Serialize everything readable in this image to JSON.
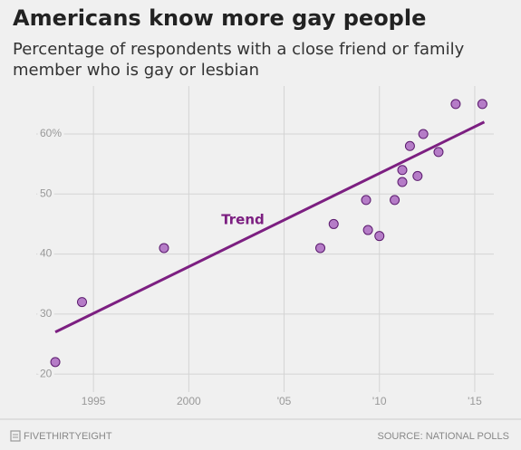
{
  "chart_data": {
    "type": "scatter",
    "title": "Americans know more gay people",
    "subtitle": [
      "Percentage of respondents with a close friend or family",
      "member who is gay or lesbian"
    ],
    "series": [
      {
        "color": "#b57cc7",
        "stroke": "#5b1a6e",
        "x": [
          1993.0,
          1994.4,
          1998.7,
          2006.9,
          2007.6,
          2009.3,
          2009.4,
          2010.0,
          2010.8,
          2011.2,
          2011.2,
          2011.6,
          2012.0,
          2012.3,
          2013.1,
          2014.0,
          2015.4
        ],
        "values": [
          22,
          32,
          41,
          41,
          45,
          49,
          44,
          43,
          49,
          52,
          54,
          58,
          53,
          60,
          57,
          65,
          65
        ]
      }
    ],
    "trend": {
      "name": "Trend",
      "color": "#7c1f81",
      "x": [
        1993.0,
        2015.5
      ],
      "values": [
        27,
        62
      ]
    },
    "xlim": [
      1992,
      2016
    ],
    "ylim": [
      17,
      68
    ],
    "xticks": [
      {
        "value": 1995,
        "label": "1995"
      },
      {
        "value": 2000,
        "label": "2000"
      },
      {
        "value": 2005,
        "label": "'05"
      },
      {
        "value": 2010,
        "label": "'10"
      },
      {
        "value": 2015,
        "label": "'15"
      }
    ],
    "yticks": [
      20,
      30,
      40,
      50,
      {
        "value": 60,
        "label": "60%"
      }
    ],
    "grid": true
  },
  "footer": {
    "brand": "FIVETHIRTYEIGHT",
    "source": "SOURCE: NATIONAL POLLS"
  }
}
